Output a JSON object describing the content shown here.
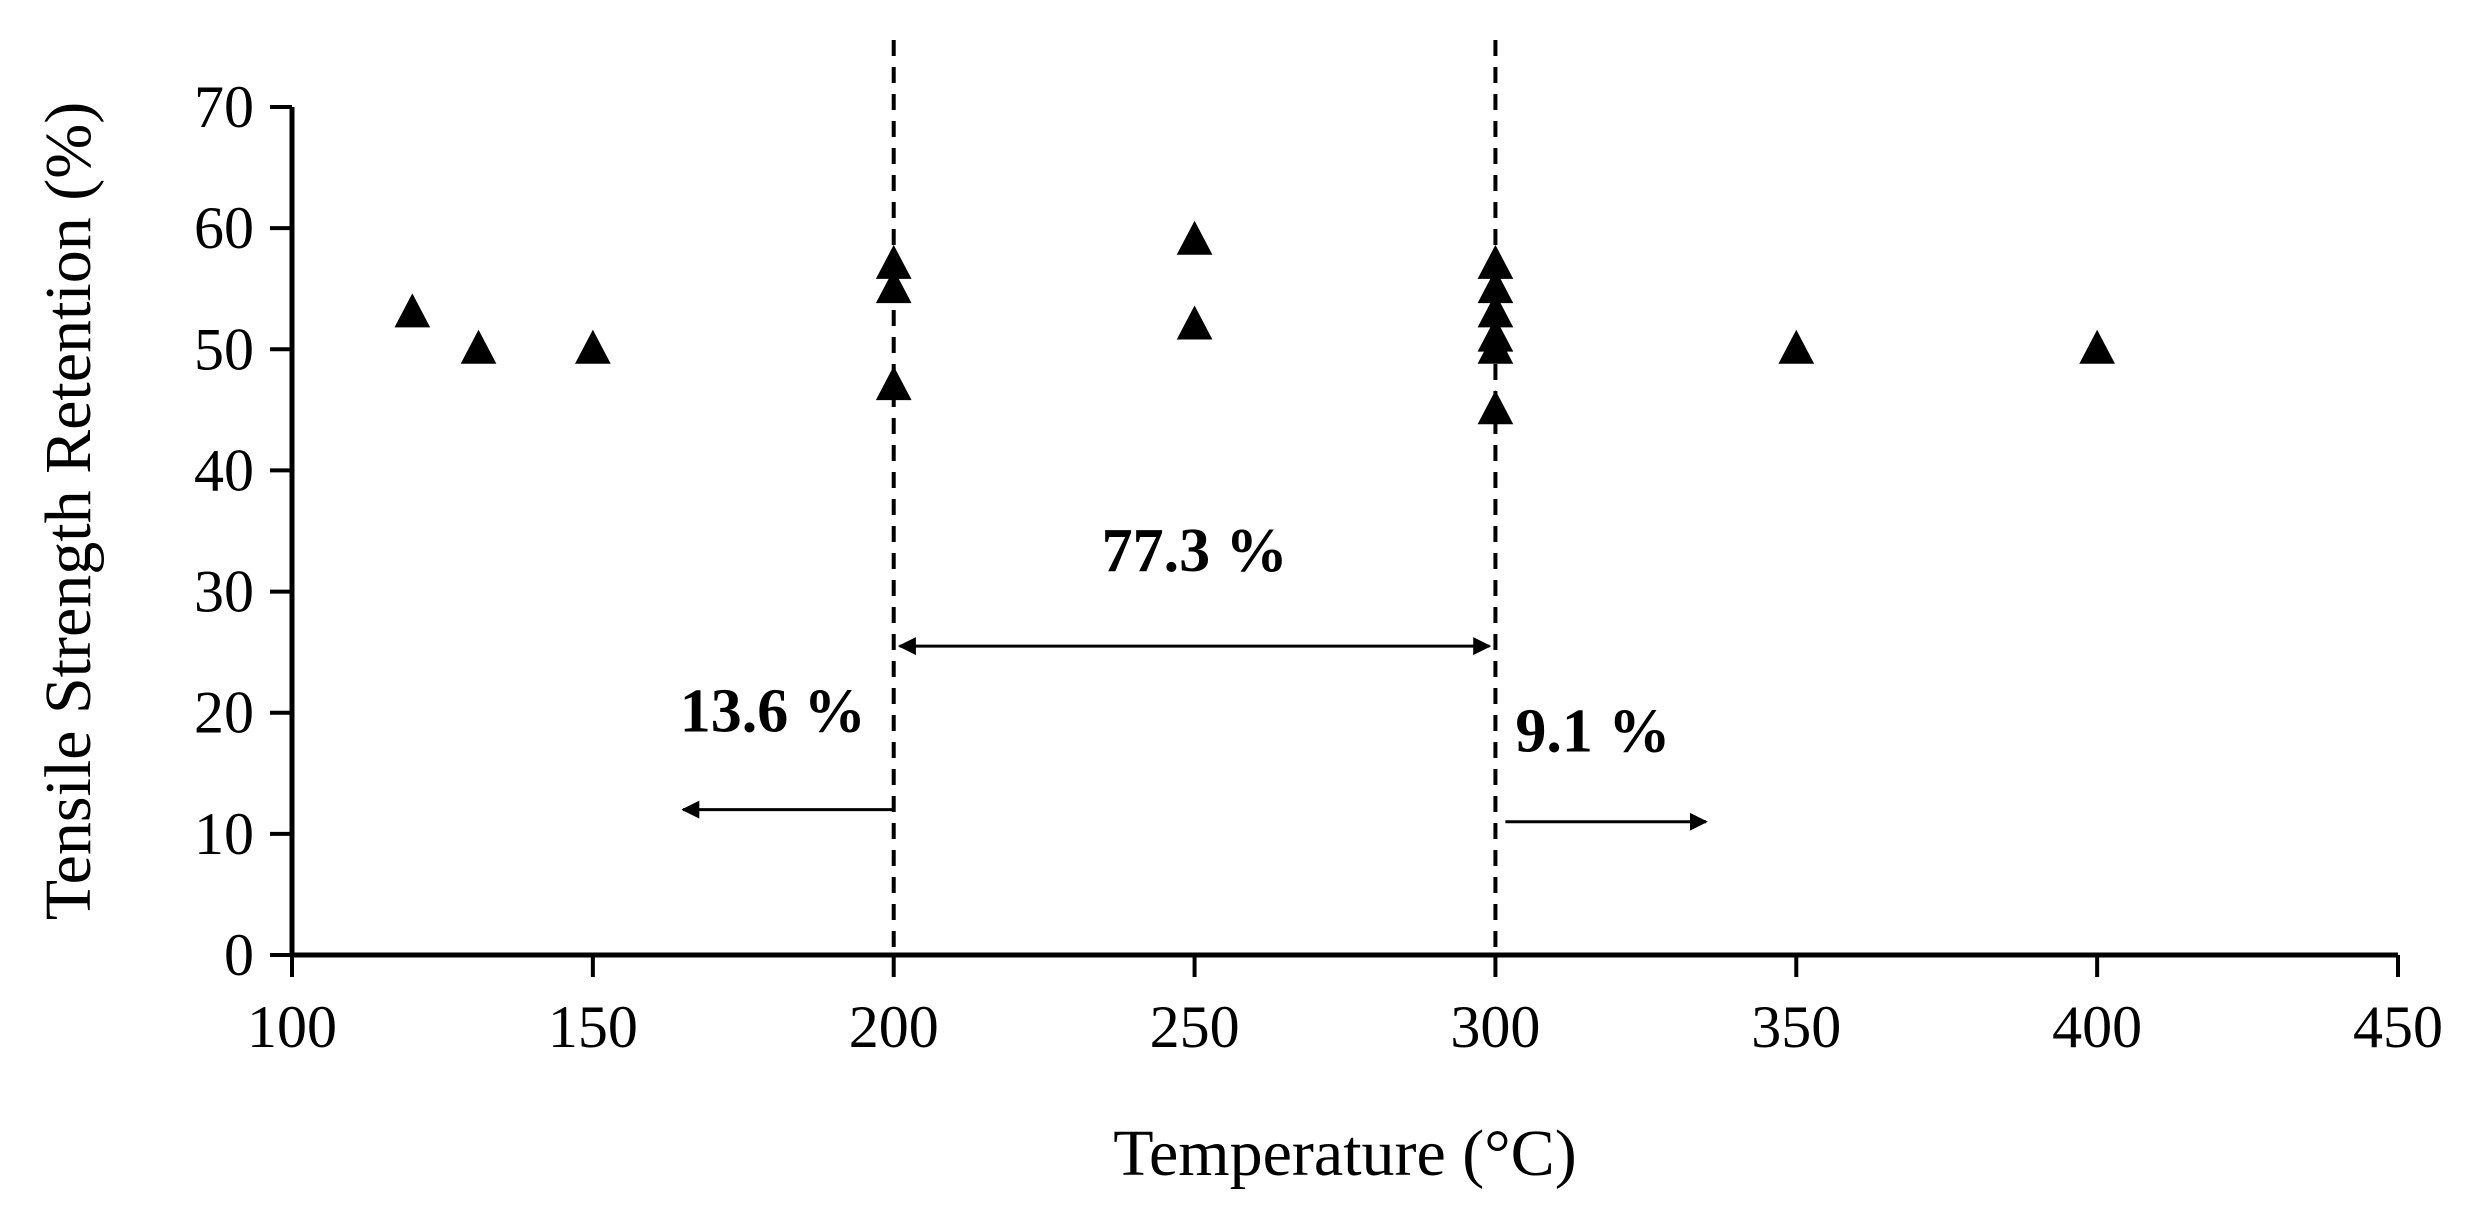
{
  "chart_data": {
    "type": "scatter",
    "xlabel": "Temperature (°C)",
    "ylabel": "Tensile Strength Retention (%)",
    "xlim": [
      100,
      450
    ],
    "ylim": [
      0,
      70
    ],
    "xticks": [
      100,
      150,
      200,
      250,
      300,
      350,
      400,
      450
    ],
    "yticks": [
      0,
      10,
      20,
      30,
      40,
      50,
      60,
      70
    ],
    "marker": "triangle",
    "marker_color": "#000000",
    "grid": false,
    "points": [
      {
        "x": 120,
        "y": 53
      },
      {
        "x": 131,
        "y": 50
      },
      {
        "x": 150,
        "y": 50
      },
      {
        "x": 200,
        "y": 57
      },
      {
        "x": 200,
        "y": 55
      },
      {
        "x": 200,
        "y": 47
      },
      {
        "x": 250,
        "y": 59
      },
      {
        "x": 250,
        "y": 52
      },
      {
        "x": 300,
        "y": 57
      },
      {
        "x": 300,
        "y": 55
      },
      {
        "x": 300,
        "y": 53
      },
      {
        "x": 300,
        "y": 51
      },
      {
        "x": 300,
        "y": 50
      },
      {
        "x": 300,
        "y": 45
      },
      {
        "x": 350,
        "y": 50
      },
      {
        "x": 400,
        "y": 50
      }
    ],
    "reference_lines": [
      {
        "x": 200,
        "style": "dashed"
      },
      {
        "x": 300,
        "style": "dashed"
      }
    ],
    "annotations": [
      {
        "text": "13.6 %",
        "direction": "left",
        "from_x": 200,
        "to_x": 165,
        "y": 12
      },
      {
        "text": "77.3 %",
        "direction": "both",
        "from_x": 200,
        "to_x": 300,
        "y": 25.5
      },
      {
        "text": "9.1 %",
        "direction": "right",
        "from_x": 300,
        "to_x": 335,
        "y": 11
      }
    ]
  }
}
